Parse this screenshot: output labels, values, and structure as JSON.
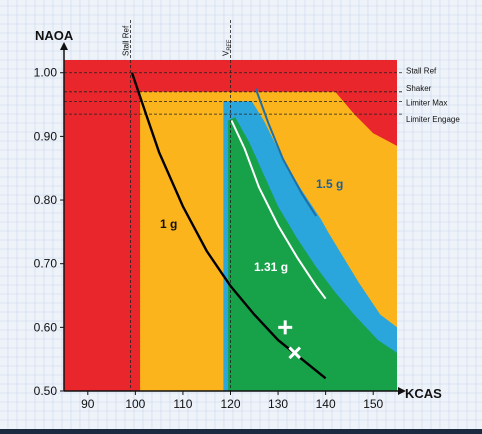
{
  "chart_data": {
    "type": "area",
    "title": "",
    "xlabel": "KCAS",
    "ylabel": "NAOA",
    "xlim": [
      85,
      155
    ],
    "ylim": [
      0.5,
      1.0
    ],
    "x_ticks": [
      90,
      100,
      110,
      120,
      130,
      140,
      150
    ],
    "y_ticks": [
      0.5,
      0.6,
      0.7,
      0.8,
      0.9,
      1.0
    ],
    "grid": true,
    "vertical_references": [
      {
        "label": "Stall Ref",
        "x": 99
      },
      {
        "label": "VREF",
        "label_main": "V",
        "label_sub": "REF",
        "x": 120
      }
    ],
    "horizontal_references": [
      {
        "label": "Stall Ref",
        "y": 1.0
      },
      {
        "label": "Shaker",
        "y": 0.97
      },
      {
        "label": "Limiter Max",
        "y": 0.955
      },
      {
        "label": "Limiter Engage",
        "y": 0.935
      }
    ],
    "series": [
      {
        "name": "1 g",
        "color": "#000000",
        "x": [
          99.3,
          102,
          105,
          110,
          115,
          120,
          125,
          130,
          135,
          140
        ],
        "y": [
          1.0,
          0.94,
          0.875,
          0.79,
          0.72,
          0.665,
          0.62,
          0.58,
          0.55,
          0.52
        ]
      },
      {
        "name": "1.31 g",
        "color": "#ffffff",
        "x": [
          120.2,
          123,
          126,
          130,
          134,
          138,
          140
        ],
        "y": [
          0.925,
          0.88,
          0.82,
          0.76,
          0.71,
          0.665,
          0.645
        ]
      },
      {
        "name": "1.5 g",
        "color": "#1f6fa8",
        "x": [
          125.3,
          128,
          131,
          135,
          138
        ],
        "y": [
          0.975,
          0.92,
          0.865,
          0.81,
          0.775
        ]
      }
    ],
    "regions": [
      {
        "color": "#e8262c",
        "meaning": "red"
      },
      {
        "color": "#fbb41c",
        "meaning": "amber"
      },
      {
        "color": "#2aa6dd",
        "meaning": "blue"
      },
      {
        "color": "#17a24a",
        "meaning": "green"
      }
    ],
    "markers": [
      {
        "symbol": "+",
        "x": 131.5,
        "y": 0.6,
        "color": "#ffffff"
      },
      {
        "symbol": "x",
        "x": 133.5,
        "y": 0.56,
        "color": "#ffffff"
      }
    ]
  }
}
